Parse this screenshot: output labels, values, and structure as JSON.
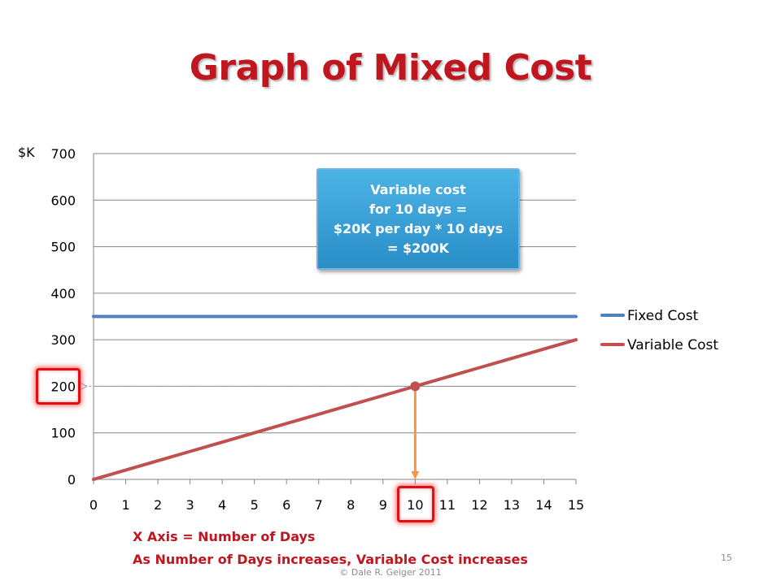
{
  "slide": {
    "title": "Graph of Mixed Cost",
    "page_number": "15",
    "footer": "© Dale R. Geiger 2011"
  },
  "callout": {
    "lines": [
      "Variable cost",
      "for 10 days  =",
      "$20K per day * 10 days",
      "= $200K"
    ]
  },
  "notes": {
    "line1": "X Axis = Number of Days",
    "line2": "As Number of Days increases, Variable Cost  increases"
  },
  "colors": {
    "title": "#C0161F",
    "fixed_cost": "#4F81BD",
    "variable_cost": "#C0504D",
    "marker_arrow": "#F79646",
    "highlight": "#E01010",
    "grid": "#868686"
  },
  "chart_data": {
    "type": "line",
    "title": "",
    "xlabel": "",
    "ylabel": "$K",
    "x": [
      0,
      1,
      2,
      3,
      4,
      5,
      6,
      7,
      8,
      9,
      10,
      11,
      12,
      13,
      14,
      15
    ],
    "xlim": [
      0,
      15
    ],
    "ylim": [
      0,
      700
    ],
    "yticks": [
      0,
      100,
      200,
      300,
      400,
      500,
      600,
      700
    ],
    "grid": "horizontal",
    "legend_position": "right",
    "series": [
      {
        "name": "Fixed Cost",
        "color": "#4F81BD",
        "values": [
          350,
          350,
          350,
          350,
          350,
          350,
          350,
          350,
          350,
          350,
          350,
          350,
          350,
          350,
          350,
          350
        ]
      },
      {
        "name": "Variable Cost",
        "color": "#C0504D",
        "values": [
          0,
          20,
          40,
          60,
          80,
          100,
          120,
          140,
          160,
          180,
          200,
          220,
          240,
          260,
          280,
          300
        ]
      }
    ],
    "highlight_point": {
      "x": 10,
      "y": 200
    },
    "highlighted_x_tick": "10",
    "highlighted_y_tick": "200"
  }
}
